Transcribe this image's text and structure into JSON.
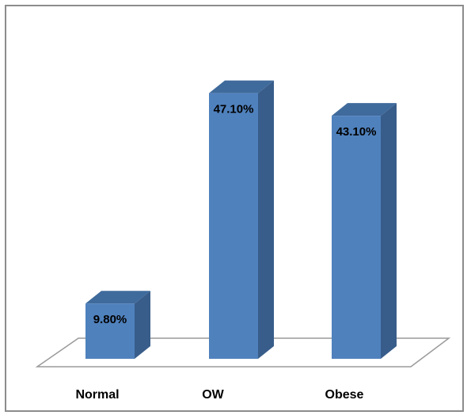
{
  "chart_data": {
    "type": "bar",
    "categories": [
      "Normal",
      "OW",
      "Obese"
    ],
    "values": [
      9.8,
      47.1,
      43.1
    ],
    "value_labels": [
      "9.80%",
      "47.10%",
      "43.10%"
    ],
    "ylim": [
      0,
      50
    ],
    "grid": false,
    "legend": "none",
    "style": "3d-column"
  },
  "colors": {
    "bar_front": "#4f81bd",
    "bar_side": "#385d8a",
    "bar_top": "#3f6a9c",
    "floor_stroke": "#9a9a9a"
  }
}
